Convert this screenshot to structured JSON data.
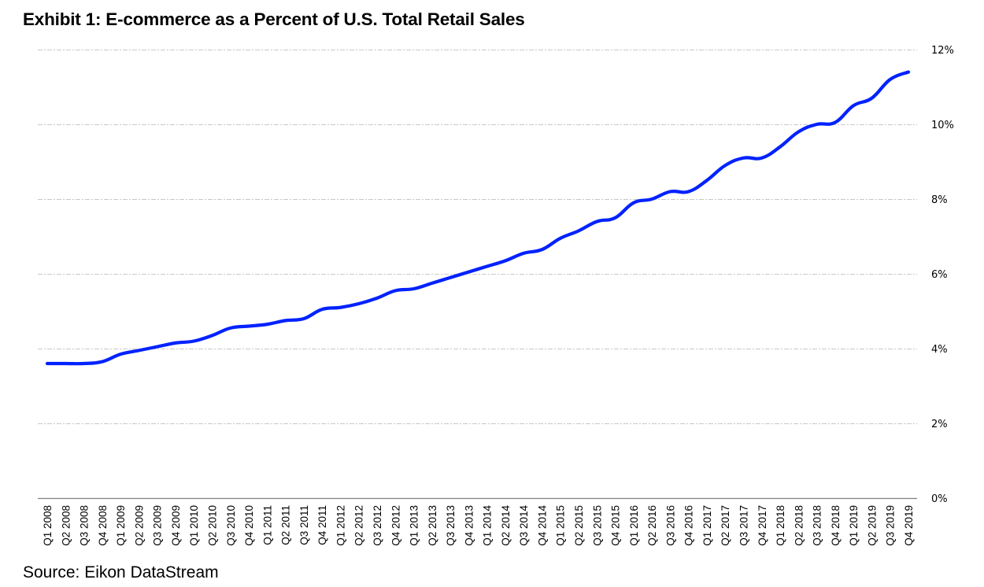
{
  "chart_data": {
    "type": "line",
    "title": "Exhibit 1: E-commerce as a Percent of U.S. Total Retail Sales",
    "source": "Source: Eikon DataStream",
    "xlabel": "",
    "ylabel": "",
    "ylim": [
      0,
      12
    ],
    "y_ticks": [
      0,
      2,
      4,
      6,
      8,
      10,
      12
    ],
    "y_tick_labels": [
      "0%",
      "2%",
      "4%",
      "6%",
      "8%",
      "10%",
      "12%"
    ],
    "y_axis_side": "right",
    "grid": true,
    "legend": "none",
    "categories": [
      "Q1 2008",
      "Q2 2008",
      "Q3 2008",
      "Q4 2008",
      "Q1 2009",
      "Q2 2009",
      "Q3 2009",
      "Q4 2009",
      "Q1 2010",
      "Q2 2010",
      "Q3 2010",
      "Q4 2010",
      "Q1 2011",
      "Q2 2011",
      "Q3 2011",
      "Q4 2011",
      "Q1 2012",
      "Q2 2012",
      "Q3 2012",
      "Q4 2012",
      "Q1 2013",
      "Q2 2013",
      "Q3 2013",
      "Q4 2013",
      "Q1 2014",
      "Q2 2014",
      "Q3 2014",
      "Q4 2014",
      "Q1 2015",
      "Q2 2015",
      "Q3 2015",
      "Q4 2015",
      "Q1 2016",
      "Q2 2016",
      "Q3 2016",
      "Q4 2016",
      "Q1 2017",
      "Q2 2017",
      "Q3 2017",
      "Q4 2017",
      "Q1 2018",
      "Q2 2018",
      "Q3 2018",
      "Q4 2018",
      "Q1 2019",
      "Q2 2019",
      "Q3 2019",
      "Q4 2019"
    ],
    "series": [
      {
        "name": "E-commerce % of U.S. Total Retail Sales",
        "color": "#0022ff",
        "values": [
          3.6,
          3.6,
          3.6,
          3.65,
          3.85,
          3.95,
          4.05,
          4.15,
          4.2,
          4.35,
          4.55,
          4.6,
          4.65,
          4.75,
          4.8,
          5.05,
          5.1,
          5.2,
          5.35,
          5.55,
          5.6,
          5.75,
          5.9,
          6.05,
          6.2,
          6.35,
          6.55,
          6.65,
          6.95,
          7.15,
          7.4,
          7.5,
          7.9,
          8.0,
          8.2,
          8.2,
          8.5,
          8.9,
          9.1,
          9.1,
          9.4,
          9.8,
          10.0,
          10.05,
          10.5,
          10.7,
          11.2,
          11.4
        ]
      }
    ]
  },
  "colors": {
    "gridline": "#c8c8c8",
    "axis": "#808080",
    "text": "#000000"
  }
}
